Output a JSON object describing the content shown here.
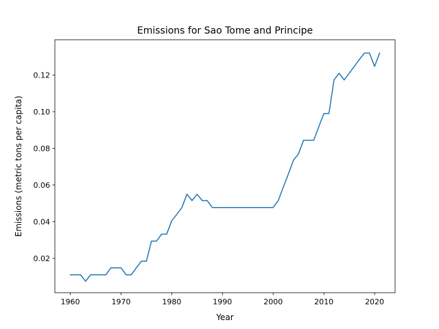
{
  "chart_data": {
    "type": "line",
    "title": "Emissions for Sao Tome and Principe",
    "xlabel": "Year",
    "ylabel": "Emissions (metric tons per capita)",
    "xlim": [
      1956.95,
      2024.05
    ],
    "ylim": [
      0.00125,
      0.13925
    ],
    "xticks": [
      1960,
      1970,
      1980,
      1990,
      2000,
      2010,
      2020
    ],
    "yticks": [
      0.02,
      0.04,
      0.06,
      0.08,
      0.1,
      0.12
    ],
    "ytick_labels": [
      "0.02",
      "0.04",
      "0.06",
      "0.08",
      "0.10",
      "0.12"
    ],
    "grid": false,
    "line_color": "#1f77b4",
    "series": [
      {
        "x": [
          1960,
          1961,
          1962,
          1963,
          1964,
          1965,
          1966,
          1967,
          1968,
          1969,
          1970,
          1971,
          1972,
          1973,
          1974,
          1975,
          1976,
          1977,
          1978,
          1979,
          1980,
          1981,
          1982,
          1983,
          1984,
          1985,
          1986,
          1987,
          1988,
          1989,
          1990,
          1991,
          1992,
          1993,
          1994,
          1995,
          1996,
          1997,
          1998,
          1999,
          2000,
          2001,
          2002,
          2003,
          2004,
          2005,
          2006,
          2007,
          2008,
          2009,
          2010,
          2011,
          2012,
          2013,
          2014,
          2015,
          2016,
          2017,
          2018,
          2019,
          2020,
          2021
        ],
        "values": [
          0.011,
          0.011,
          0.011,
          0.0075,
          0.011,
          0.011,
          0.011,
          0.011,
          0.0148,
          0.0148,
          0.0148,
          0.011,
          0.011,
          0.0148,
          0.0184,
          0.0184,
          0.0294,
          0.0294,
          0.0332,
          0.0332,
          0.0405,
          0.044,
          0.0477,
          0.055,
          0.0515,
          0.055,
          0.0515,
          0.0515,
          0.0477,
          0.0477,
          0.0477,
          0.0477,
          0.0477,
          0.0477,
          0.0477,
          0.0477,
          0.0477,
          0.0477,
          0.0477,
          0.0477,
          0.0477,
          0.0515,
          0.0588,
          0.066,
          0.0735,
          0.077,
          0.0844,
          0.0844,
          0.0844,
          0.0918,
          0.099,
          0.099,
          0.1173,
          0.121,
          0.1173,
          0.121,
          0.1247,
          0.1285,
          0.132,
          0.132,
          0.1247,
          0.132
        ]
      }
    ]
  }
}
